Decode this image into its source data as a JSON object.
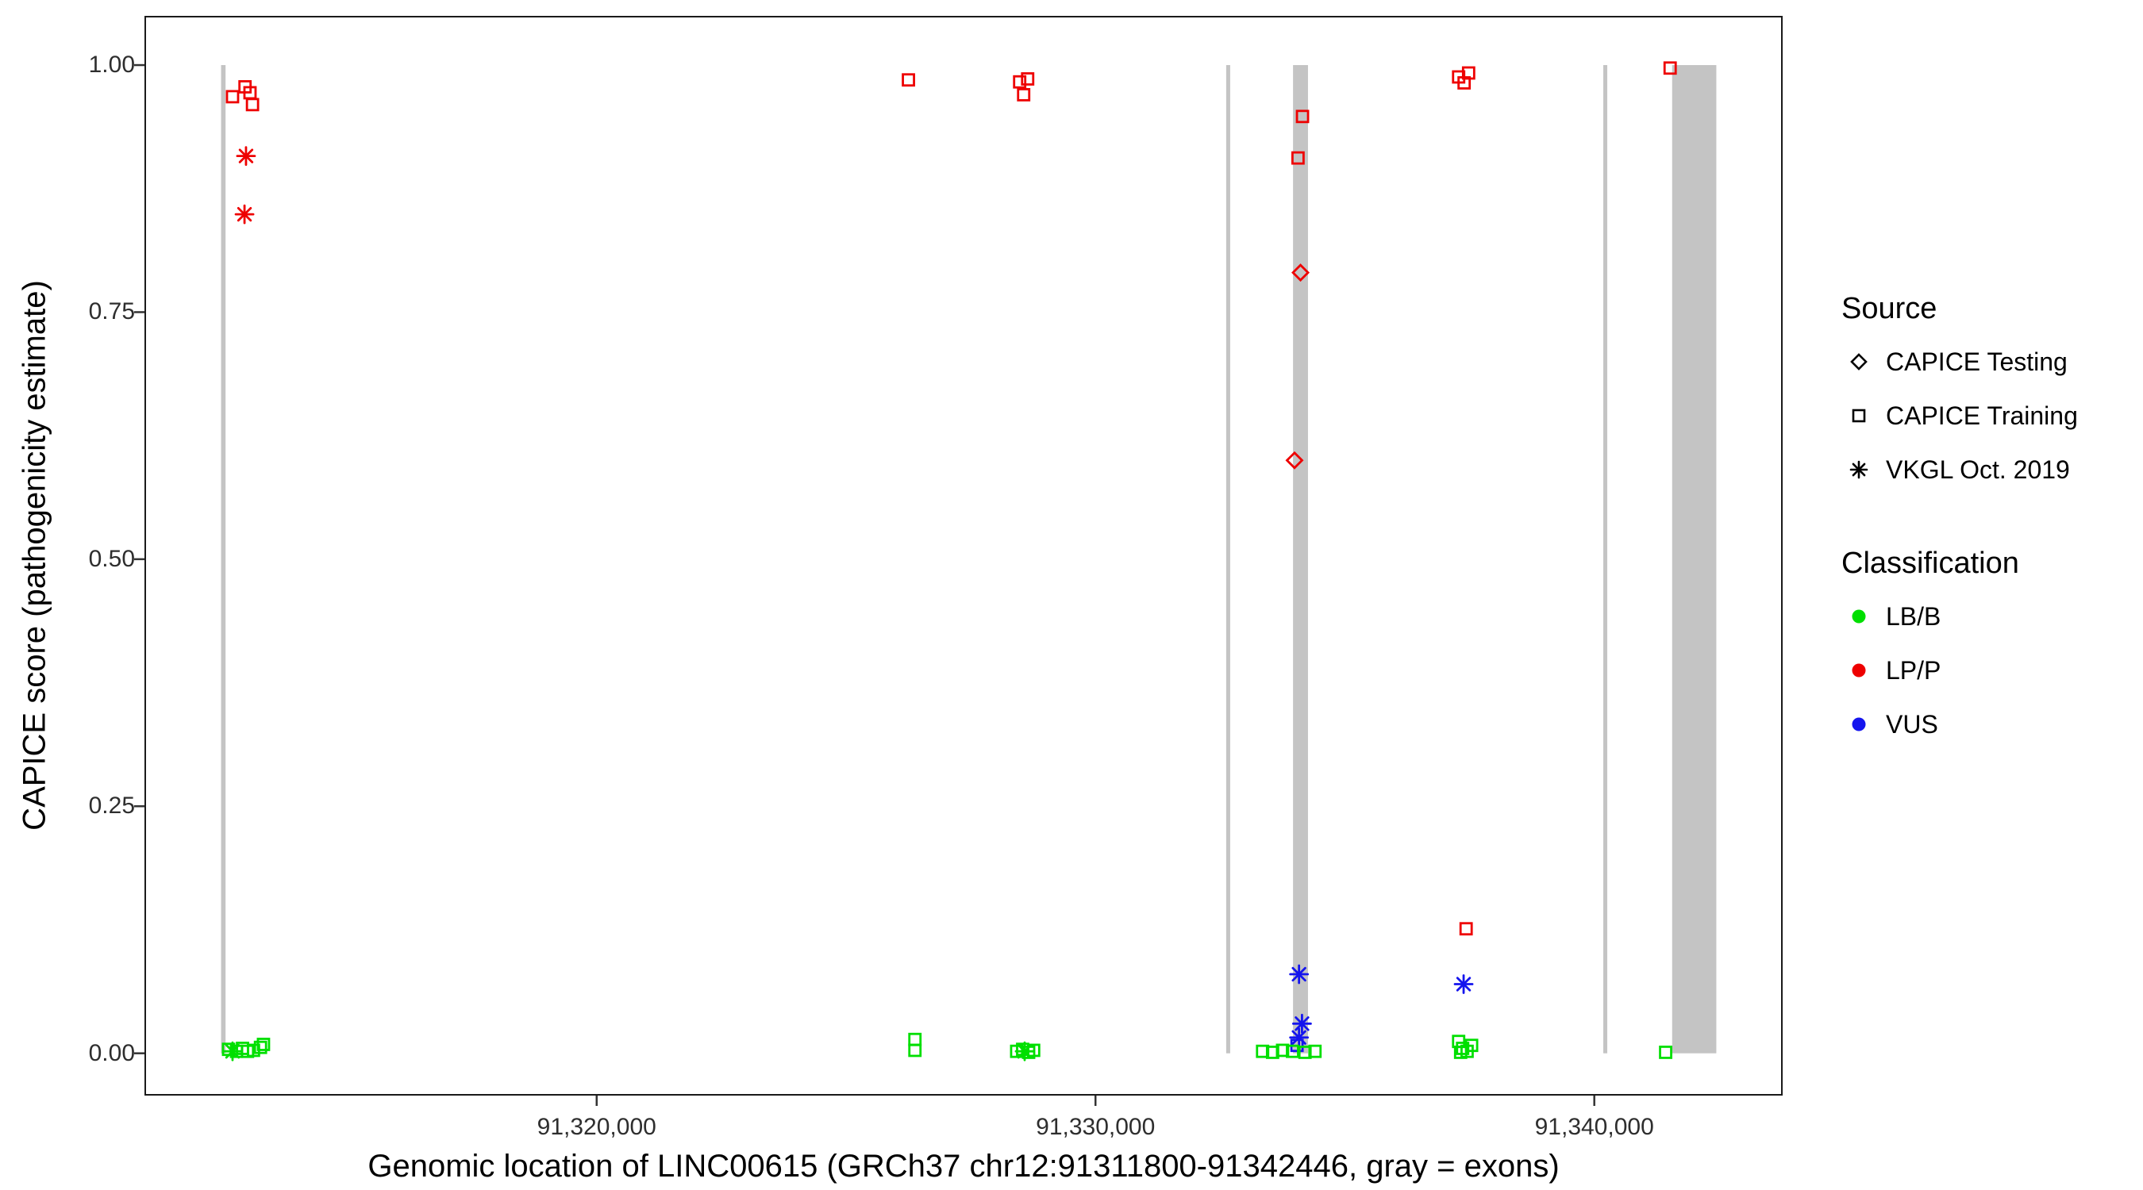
{
  "legend": {
    "source": {
      "title": "Source",
      "items": [
        {
          "label": "CAPICE Testing",
          "shape": "diamond"
        },
        {
          "label": "CAPICE Training",
          "shape": "square"
        },
        {
          "label": "VKGL Oct. 2019",
          "shape": "asterisk"
        }
      ]
    },
    "classification": {
      "title": "Classification",
      "items": [
        {
          "label": "LB/B",
          "color": "#00DF00"
        },
        {
          "label": "LP/P",
          "color": "#EE0000"
        },
        {
          "label": "VUS",
          "color": "#1515EE"
        }
      ]
    }
  },
  "chart_data": {
    "type": "scatter",
    "title": "",
    "xlabel": "Genomic location of LINC00615 (GRCh37 chr12:91311800-91342446, gray = exons)",
    "ylabel": "CAPICE score (pathogenicity estimate)",
    "xlim": [
      91310950,
      91343760
    ],
    "ylim": [
      -0.042,
      1.049
    ],
    "x_ticks": [
      {
        "value": 91320000,
        "label": "91,320,000"
      },
      {
        "value": 91330000,
        "label": "91,330,000"
      },
      {
        "value": 91340000,
        "label": "91,340,000"
      }
    ],
    "y_ticks": [
      {
        "value": 0.0,
        "label": "0.00"
      },
      {
        "value": 0.25,
        "label": "0.25"
      },
      {
        "value": 0.5,
        "label": "0.50"
      },
      {
        "value": 0.75,
        "label": "0.75"
      },
      {
        "value": 1.0,
        "label": "1.00"
      }
    ],
    "exon_note": "gray vertical bars = exons, spanning score 0 to 1",
    "exon_color": "#C4C4C4",
    "exons": [
      [
        91312470,
        91312560
      ],
      [
        91332620,
        91332700
      ],
      [
        91333960,
        91334260
      ],
      [
        91340180,
        91340260
      ],
      [
        91341560,
        91342446
      ]
    ],
    "colors": {
      "LB/B": "#00DF00",
      "LP/P": "#EE0000",
      "VUS": "#1515EE"
    },
    "shape_to_source": {
      "diamond": "CAPICE Testing",
      "square": "CAPICE Training",
      "asterisk": "VKGL Oct. 2019"
    },
    "points": [
      {
        "x": 91312700,
        "y": 0.968,
        "shape": "square",
        "class": "LP/P"
      },
      {
        "x": 91312950,
        "y": 0.978,
        "shape": "square",
        "class": "LP/P"
      },
      {
        "x": 91313050,
        "y": 0.972,
        "shape": "square",
        "class": "LP/P"
      },
      {
        "x": 91313100,
        "y": 0.96,
        "shape": "square",
        "class": "LP/P"
      },
      {
        "x": 91312970,
        "y": 0.908,
        "shape": "asterisk",
        "class": "LP/P"
      },
      {
        "x": 91312940,
        "y": 0.849,
        "shape": "asterisk",
        "class": "LP/P"
      },
      {
        "x": 91312620,
        "y": 0.004,
        "shape": "square",
        "class": "LB/B"
      },
      {
        "x": 91312700,
        "y": 0.002,
        "shape": "asterisk",
        "class": "LB/B"
      },
      {
        "x": 91312780,
        "y": 0.002,
        "shape": "square",
        "class": "LB/B"
      },
      {
        "x": 91312900,
        "y": 0.005,
        "shape": "square",
        "class": "LB/B"
      },
      {
        "x": 91313000,
        "y": 0.002,
        "shape": "square",
        "class": "LB/B"
      },
      {
        "x": 91313120,
        "y": 0.003,
        "shape": "square",
        "class": "LB/B"
      },
      {
        "x": 91313260,
        "y": 0.006,
        "shape": "square",
        "class": "LB/B"
      },
      {
        "x": 91313320,
        "y": 0.009,
        "shape": "square",
        "class": "LB/B"
      },
      {
        "x": 91326250,
        "y": 0.985,
        "shape": "square",
        "class": "LP/P"
      },
      {
        "x": 91326380,
        "y": 0.014,
        "shape": "square",
        "class": "LB/B"
      },
      {
        "x": 91326380,
        "y": 0.003,
        "shape": "square",
        "class": "LB/B"
      },
      {
        "x": 91328480,
        "y": 0.983,
        "shape": "square",
        "class": "LP/P"
      },
      {
        "x": 91328640,
        "y": 0.986,
        "shape": "square",
        "class": "LP/P"
      },
      {
        "x": 91328560,
        "y": 0.97,
        "shape": "square",
        "class": "LP/P"
      },
      {
        "x": 91328420,
        "y": 0.002,
        "shape": "square",
        "class": "LB/B"
      },
      {
        "x": 91328540,
        "y": 0.004,
        "shape": "square",
        "class": "LB/B"
      },
      {
        "x": 91328580,
        "y": 0.002,
        "shape": "asterisk",
        "class": "LB/B"
      },
      {
        "x": 91328660,
        "y": 0.001,
        "shape": "square",
        "class": "LB/B"
      },
      {
        "x": 91328760,
        "y": 0.003,
        "shape": "square",
        "class": "LB/B"
      },
      {
        "x": 91334150,
        "y": 0.948,
        "shape": "square",
        "class": "LP/P"
      },
      {
        "x": 91334060,
        "y": 0.906,
        "shape": "square",
        "class": "LP/P"
      },
      {
        "x": 91334110,
        "y": 0.79,
        "shape": "diamond",
        "class": "LP/P"
      },
      {
        "x": 91333990,
        "y": 0.6,
        "shape": "diamond",
        "class": "LP/P"
      },
      {
        "x": 91334080,
        "y": 0.08,
        "shape": "asterisk",
        "class": "VUS"
      },
      {
        "x": 91334140,
        "y": 0.03,
        "shape": "asterisk",
        "class": "VUS"
      },
      {
        "x": 91334080,
        "y": 0.016,
        "shape": "asterisk",
        "class": "VUS"
      },
      {
        "x": 91334040,
        "y": 0.008,
        "shape": "square",
        "class": "VUS"
      },
      {
        "x": 91333350,
        "y": 0.002,
        "shape": "square",
        "class": "LB/B"
      },
      {
        "x": 91333550,
        "y": 0.001,
        "shape": "square",
        "class": "LB/B"
      },
      {
        "x": 91333750,
        "y": 0.003,
        "shape": "square",
        "class": "LB/B"
      },
      {
        "x": 91333950,
        "y": 0.002,
        "shape": "square",
        "class": "LB/B"
      },
      {
        "x": 91334200,
        "y": 0.001,
        "shape": "square",
        "class": "LB/B"
      },
      {
        "x": 91334400,
        "y": 0.002,
        "shape": "square",
        "class": "LB/B"
      },
      {
        "x": 91337280,
        "y": 0.988,
        "shape": "square",
        "class": "LP/P"
      },
      {
        "x": 91337480,
        "y": 0.992,
        "shape": "square",
        "class": "LP/P"
      },
      {
        "x": 91337390,
        "y": 0.982,
        "shape": "square",
        "class": "LP/P"
      },
      {
        "x": 91337430,
        "y": 0.126,
        "shape": "square",
        "class": "LP/P"
      },
      {
        "x": 91337380,
        "y": 0.07,
        "shape": "asterisk",
        "class": "VUS"
      },
      {
        "x": 91337280,
        "y": 0.012,
        "shape": "square",
        "class": "LB/B"
      },
      {
        "x": 91337360,
        "y": 0.005,
        "shape": "square",
        "class": "LB/B"
      },
      {
        "x": 91337450,
        "y": 0.002,
        "shape": "square",
        "class": "LB/B"
      },
      {
        "x": 91337540,
        "y": 0.008,
        "shape": "square",
        "class": "LB/B"
      },
      {
        "x": 91337320,
        "y": 0.001,
        "shape": "square",
        "class": "LB/B"
      },
      {
        "x": 91341520,
        "y": 0.997,
        "shape": "square",
        "class": "LP/P"
      },
      {
        "x": 91341430,
        "y": 0.001,
        "shape": "square",
        "class": "LB/B"
      }
    ]
  }
}
